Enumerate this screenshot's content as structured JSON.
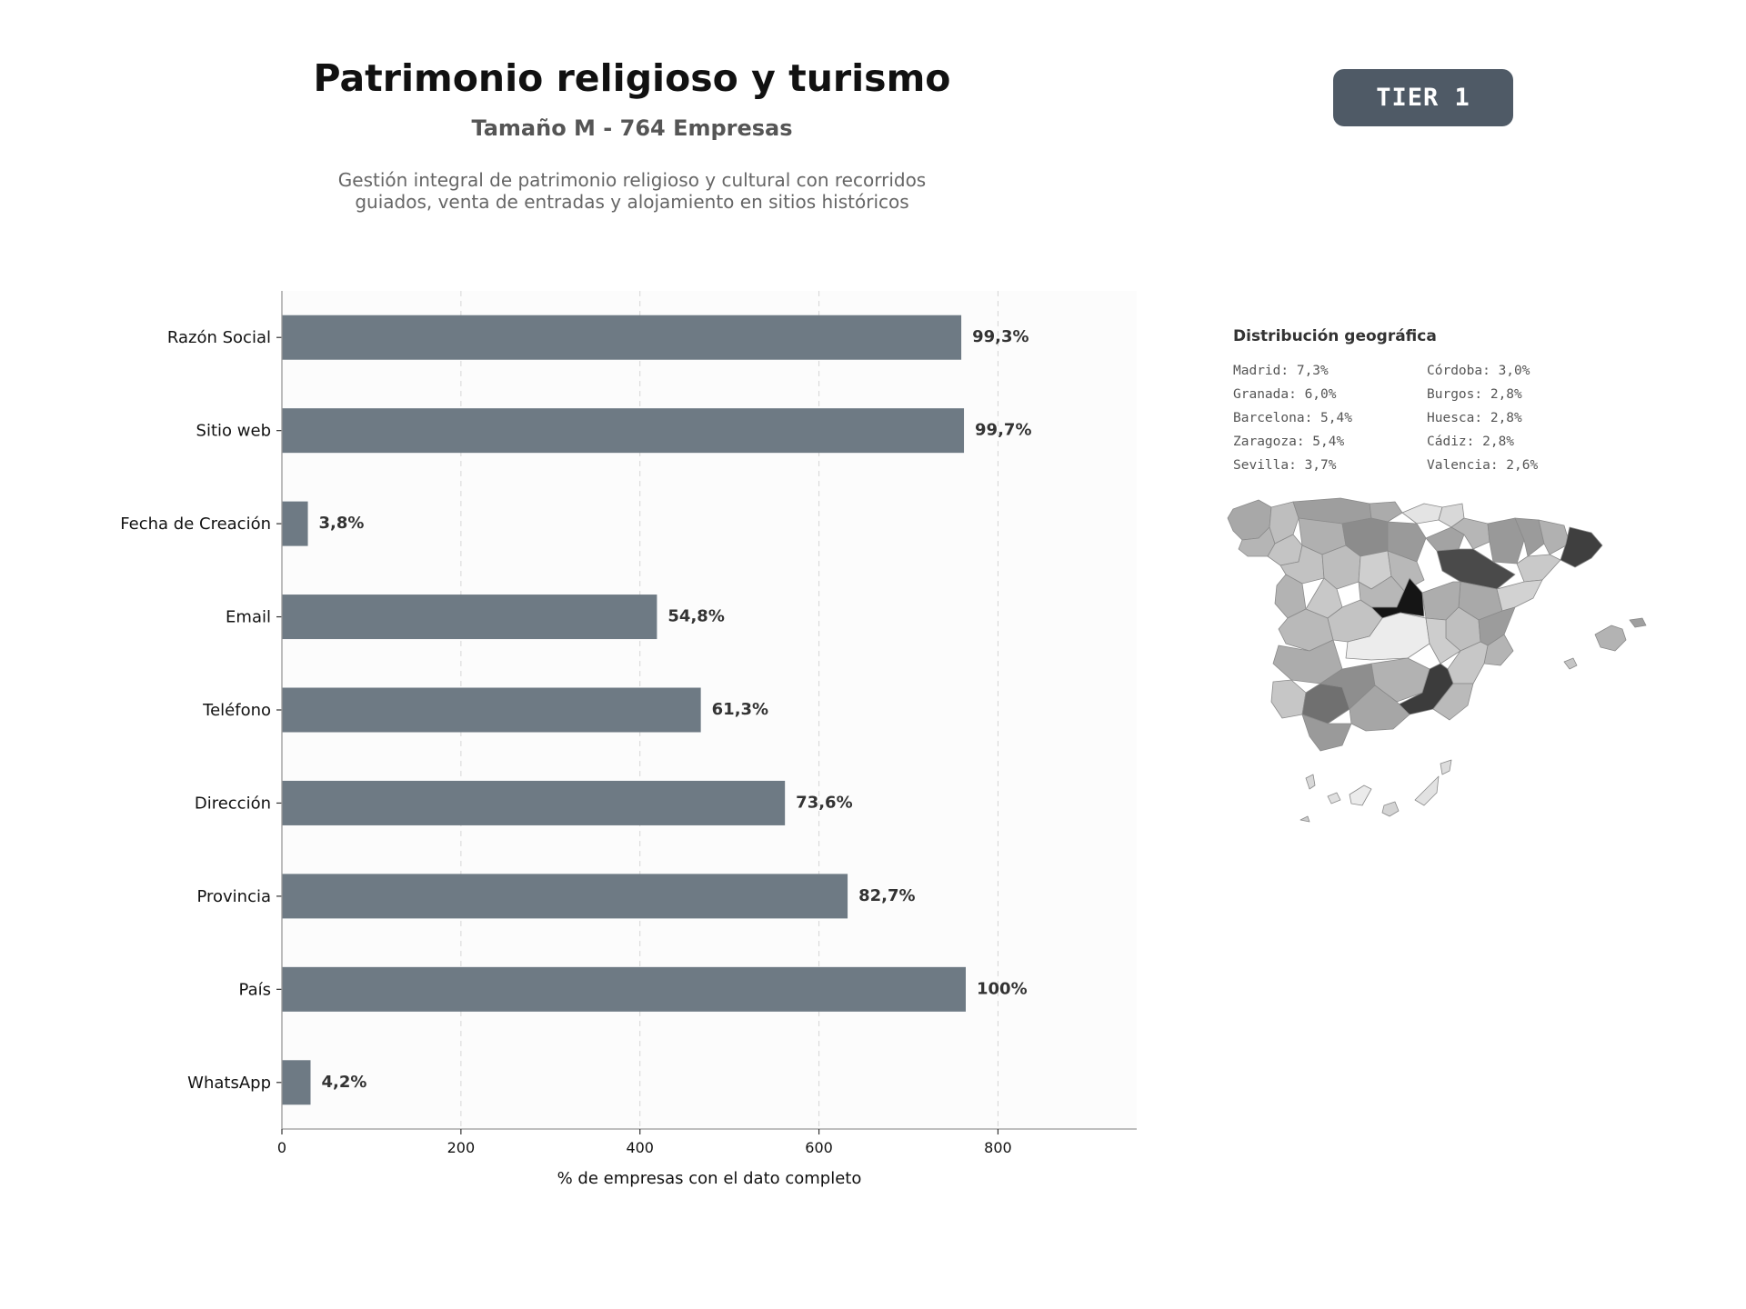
{
  "header": {
    "title": "Patrimonio religioso y turismo",
    "subtitle": "Tamaño M - 764 Empresas",
    "description_lines": [
      "Gestión integral de patrimonio religioso y cultural con recorridos",
      "guiados, venta de entradas y alojamiento en sitios históricos"
    ]
  },
  "badge": {
    "label": "TIER 1",
    "color": "#4f5a66"
  },
  "chart_data": {
    "type": "bar",
    "orientation": "horizontal",
    "categories": [
      "Razón Social",
      "Sitio web",
      "Fecha de Creación",
      "Email",
      "Teléfono",
      "Dirección",
      "Provincia",
      "País",
      "WhatsApp"
    ],
    "values": [
      759,
      762,
      29,
      419,
      468,
      562,
      632,
      764,
      32
    ],
    "value_labels": [
      "99,3%",
      "99,7%",
      "3,8%",
      "54,8%",
      "61,3%",
      "73,6%",
      "82,7%",
      "100%",
      "4,2%"
    ],
    "xlabel": "% de empresas con el dato completo",
    "xticks": [
      "0",
      "200",
      "400",
      "600",
      "800"
    ],
    "xlim": [
      0,
      955
    ],
    "grid": "vertical-dashed",
    "bar_color": "#6e7a84"
  },
  "geo": {
    "title": "Distribución geográfica",
    "items": [
      "Madrid: 7,3%",
      "Córdoba: 3,0%",
      "Granada: 6,0%",
      "Burgos: 2,8%",
      "Barcelona: 5,4%",
      "Huesca: 2,8%",
      "Zaragoza: 5,4%",
      "Cádiz: 2,8%",
      "Sevilla: 3,7%",
      "Valencia: 2,6%"
    ]
  }
}
